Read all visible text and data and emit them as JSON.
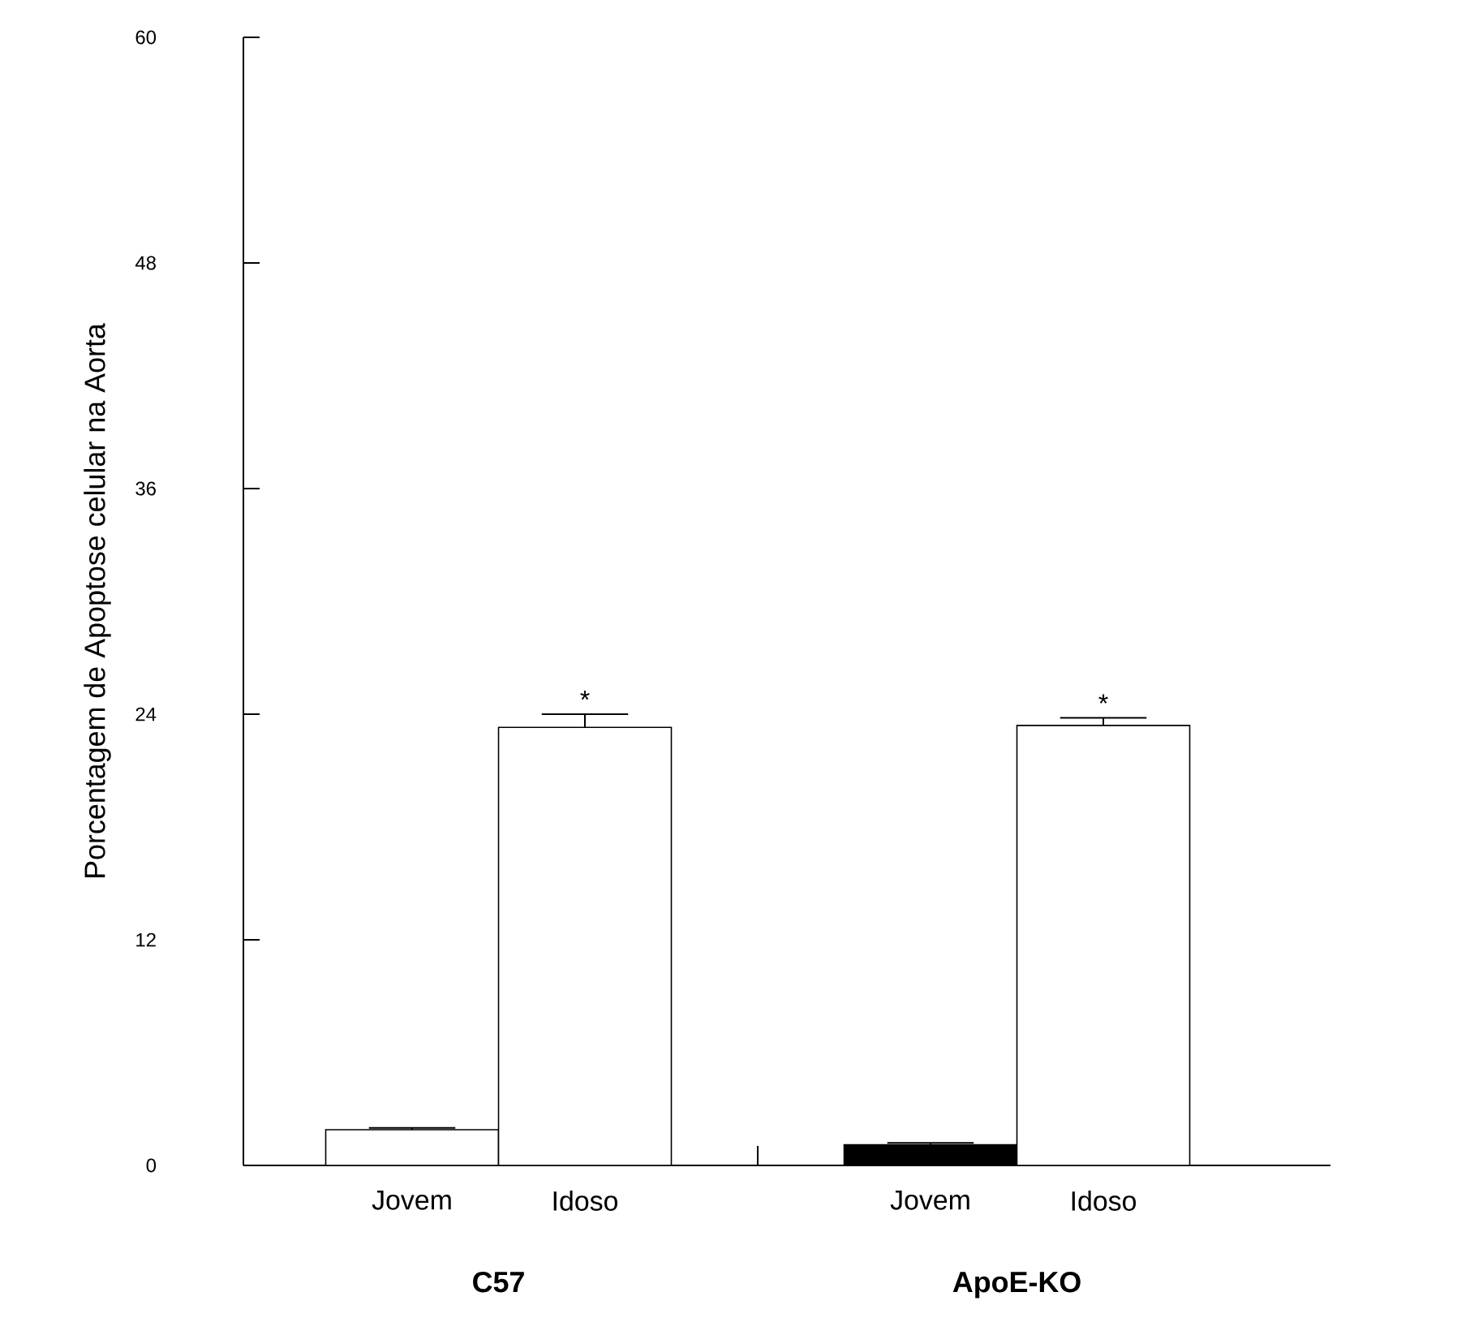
{
  "chart_data": {
    "type": "bar",
    "ylabel": "Porcentagem de Apoptose celular na Aorta",
    "categories": [
      "Jovem",
      "Idoso",
      null,
      "Jovem",
      "Idoso"
    ],
    "values": [
      1.9,
      23.3,
      null,
      1.1,
      23.4
    ],
    "colors": [
      "#ffffff",
      "#ffffff",
      "#ffffff",
      "#000000",
      "#ffffff"
    ],
    "errors": [
      [
        1.9,
        2.0
      ],
      [
        23.3,
        24.0
      ],
      null,
      [
        1.1,
        1.2
      ],
      [
        23.4,
        23.8
      ]
    ],
    "ylim": [
      0,
      60
    ],
    "yticks": [
      0,
      12,
      24,
      36,
      48,
      60
    ],
    "annotations": [
      "C57",
      "ApoE-KO",
      "*",
      "*"
    ]
  }
}
